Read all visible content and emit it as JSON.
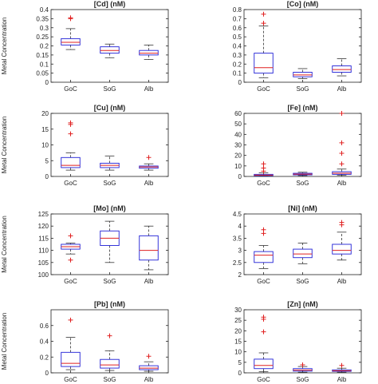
{
  "figure": {
    "ylabel": "Metal Concentration",
    "colors": {
      "box": "#1f1fd6",
      "median": "#e02020",
      "outlier": "#e02020",
      "whisker": "#333333"
    }
  },
  "chart_data": [
    {
      "type": "box",
      "title": "[Cd] (nM)",
      "categories": [
        "GoC",
        "SoG",
        "Alb"
      ],
      "ylim": [
        0,
        0.4
      ],
      "yticks": [
        "0",
        "0.05",
        "0.1",
        "0.15",
        "0.2",
        "0.25",
        "0.3",
        "0.35",
        "0.4"
      ],
      "yticks_num": [
        0,
        0.05,
        0.1,
        0.15,
        0.2,
        0.25,
        0.3,
        0.35,
        0.4
      ],
      "boxes": [
        {
          "min": 0.18,
          "q1": 0.205,
          "median": 0.22,
          "q3": 0.24,
          "max": 0.295,
          "outliers": [
            0.35,
            0.355
          ]
        },
        {
          "min": 0.135,
          "q1": 0.16,
          "median": 0.175,
          "q3": 0.195,
          "max": 0.21,
          "outliers": []
        },
        {
          "min": 0.125,
          "q1": 0.15,
          "median": 0.16,
          "q3": 0.175,
          "max": 0.205,
          "outliers": []
        }
      ]
    },
    {
      "type": "box",
      "title": "[Co] (nM)",
      "categories": [
        "GoC",
        "SoG",
        "Alb"
      ],
      "ylim": [
        0,
        0.8
      ],
      "yticks": [
        "0",
        "0.1",
        "0.2",
        "0.3",
        "0.4",
        "0.5",
        "0.6",
        "0.7",
        "0.8"
      ],
      "yticks_num": [
        0,
        0.1,
        0.2,
        0.3,
        0.4,
        0.5,
        0.6,
        0.7,
        0.8
      ],
      "boxes": [
        {
          "min": 0.05,
          "q1": 0.1,
          "median": 0.16,
          "q3": 0.32,
          "max": 0.62,
          "outliers": [
            0.65,
            0.75
          ]
        },
        {
          "min": 0.04,
          "q1": 0.06,
          "median": 0.08,
          "q3": 0.11,
          "max": 0.15,
          "outliers": []
        },
        {
          "min": 0.07,
          "q1": 0.11,
          "median": 0.14,
          "q3": 0.18,
          "max": 0.26,
          "outliers": []
        }
      ]
    },
    {
      "type": "box",
      "title": "[Cu] (nM)",
      "categories": [
        "GoC",
        "SoG",
        "Alb"
      ],
      "ylim": [
        0,
        20
      ],
      "yticks": [
        "0",
        "5",
        "10",
        "15",
        "20"
      ],
      "yticks_num": [
        0,
        5,
        10,
        15,
        20
      ],
      "boxes": [
        {
          "min": 2.0,
          "q1": 2.8,
          "median": 3.5,
          "q3": 6.0,
          "max": 7.5,
          "outliers": [
            13.5,
            16.5,
            17.0
          ]
        },
        {
          "min": 2.0,
          "q1": 2.8,
          "median": 3.5,
          "q3": 4.2,
          "max": 6.5,
          "outliers": []
        },
        {
          "min": 2.0,
          "q1": 2.6,
          "median": 3.0,
          "q3": 3.3,
          "max": 4.0,
          "outliers": [
            6.0
          ]
        }
      ]
    },
    {
      "type": "box",
      "title": "[Fe] (nM)",
      "categories": [
        "GoC",
        "SoG",
        "Alb"
      ],
      "ylim": [
        0,
        60
      ],
      "yticks": [
        "0",
        "10",
        "20",
        "30",
        "40",
        "50",
        "60"
      ],
      "yticks_num": [
        0,
        10,
        20,
        30,
        40,
        50,
        60
      ],
      "boxes": [
        {
          "min": 0.2,
          "q1": 0.7,
          "median": 1.2,
          "q3": 2.0,
          "max": 3.5,
          "outliers": [
            5,
            8,
            12
          ]
        },
        {
          "min": 0.8,
          "q1": 1.5,
          "median": 2.2,
          "q3": 3.0,
          "max": 4.0,
          "outliers": []
        },
        {
          "min": 1.0,
          "q1": 2.0,
          "median": 3.0,
          "q3": 4.5,
          "max": 7.0,
          "outliers": [
            12,
            22,
            32,
            60
          ]
        }
      ]
    },
    {
      "type": "box",
      "title": "[Mo] (nM)",
      "categories": [
        "GoC",
        "SoG",
        "Alb"
      ],
      "ylim": [
        100,
        125
      ],
      "yticks": [
        "100",
        "105",
        "110",
        "115",
        "120",
        "125"
      ],
      "yticks_num": [
        100,
        105,
        110,
        115,
        120,
        125
      ],
      "boxes": [
        {
          "min": 108.5,
          "q1": 110.5,
          "median": 111.5,
          "q3": 112.5,
          "max": 113.0,
          "outliers": [
            106.0,
            116.0
          ]
        },
        {
          "min": 105.0,
          "q1": 112.0,
          "median": 115.0,
          "q3": 118.0,
          "max": 122.0,
          "outliers": []
        },
        {
          "min": 102.0,
          "q1": 106.0,
          "median": 110.0,
          "q3": 116.0,
          "max": 120.0,
          "outliers": []
        }
      ]
    },
    {
      "type": "box",
      "title": "[Ni] (nM)",
      "categories": [
        "GoC",
        "SoG",
        "Alb"
      ],
      "ylim": [
        2,
        4.5
      ],
      "yticks": [
        "2",
        "2.5",
        "3",
        "3.5",
        "4",
        "4.5"
      ],
      "yticks_num": [
        2,
        2.5,
        3,
        3.5,
        4,
        4.5
      ],
      "boxes": [
        {
          "min": 2.25,
          "q1": 2.5,
          "median": 2.8,
          "q3": 2.95,
          "max": 3.2,
          "outliers": [
            3.7,
            3.85
          ]
        },
        {
          "min": 2.45,
          "q1": 2.7,
          "median": 2.85,
          "q3": 3.05,
          "max": 3.3,
          "outliers": []
        },
        {
          "min": 2.6,
          "q1": 2.85,
          "median": 3.0,
          "q3": 3.25,
          "max": 3.75,
          "outliers": [
            4.05,
            4.15
          ]
        }
      ]
    },
    {
      "type": "box",
      "title": "[Pb] (nM)",
      "categories": [
        "GoC",
        "SoG",
        "Alb"
      ],
      "ylim": [
        0,
        0.8
      ],
      "yticks": [
        "0",
        "0.2",
        "0.4",
        "0.6"
      ],
      "yticks_num": [
        0,
        0.2,
        0.4,
        0.6
      ],
      "boxes": [
        {
          "min": 0.04,
          "q1": 0.08,
          "median": 0.12,
          "q3": 0.26,
          "max": 0.45,
          "outliers": [
            0.67
          ]
        },
        {
          "min": 0.03,
          "q1": 0.06,
          "median": 0.1,
          "q3": 0.17,
          "max": 0.28,
          "outliers": [
            0.47
          ]
        },
        {
          "min": 0.02,
          "q1": 0.04,
          "median": 0.06,
          "q3": 0.09,
          "max": 0.14,
          "outliers": [
            0.21
          ]
        }
      ]
    },
    {
      "type": "box",
      "title": "[Zn] (nM)",
      "categories": [
        "GoC",
        "SoG",
        "Alb"
      ],
      "ylim": [
        0,
        30
      ],
      "yticks": [
        "0",
        "5",
        "10",
        "15",
        "20",
        "25",
        "30"
      ],
      "yticks_num": [
        0,
        5,
        10,
        15,
        20,
        25,
        30
      ],
      "boxes": [
        {
          "min": 0.5,
          "q1": 2.0,
          "median": 3.5,
          "q3": 6.5,
          "max": 9.5,
          "outliers": [
            19.5,
            25.5,
            26.5
          ]
        },
        {
          "min": 0.3,
          "q1": 0.8,
          "median": 1.3,
          "q3": 2.0,
          "max": 3.0,
          "outliers": [
            3.8
          ]
        },
        {
          "min": 0.3,
          "q1": 0.7,
          "median": 1.0,
          "q3": 1.4,
          "max": 2.2,
          "outliers": [
            3.5
          ]
        }
      ]
    }
  ]
}
